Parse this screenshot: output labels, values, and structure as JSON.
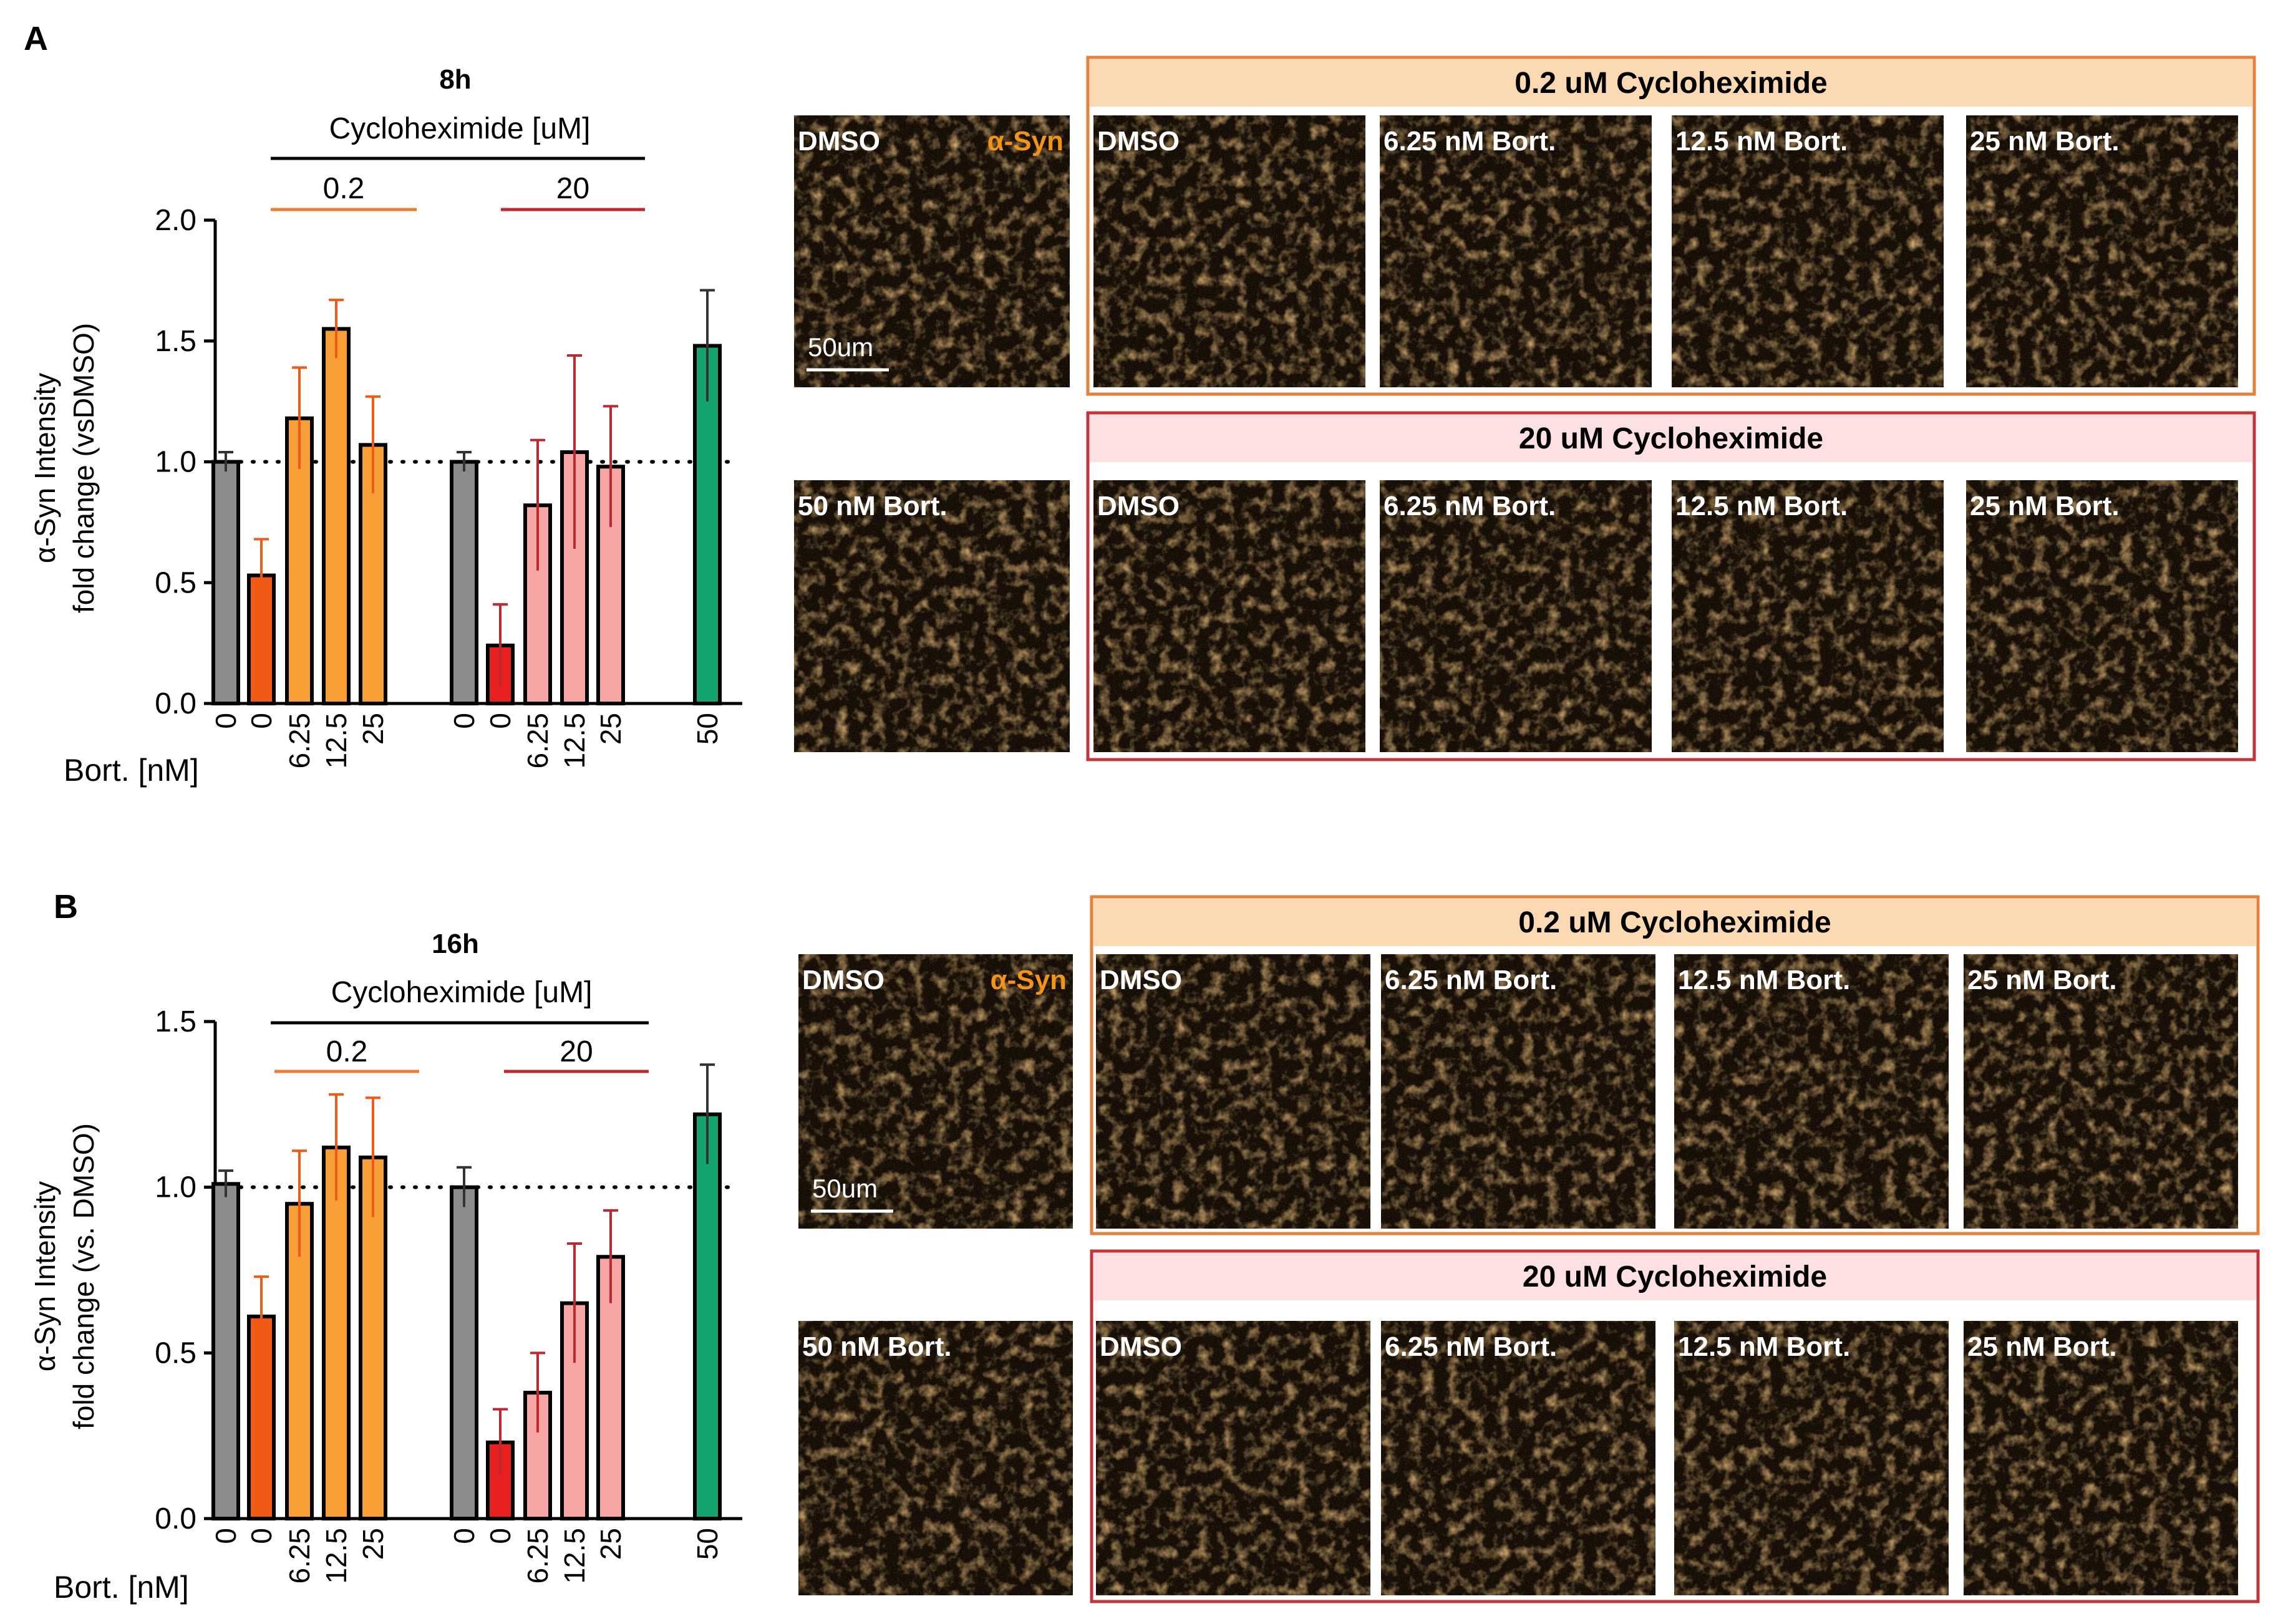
{
  "colors": {
    "gray": "#8c8c8c",
    "orange_dark": "#f05a14",
    "orange_light": "#f8a037",
    "red": "#e8201e",
    "pink": "#f8a5a5",
    "green": "#14a56e",
    "bar_edge": "#000000",
    "orange_line": "#ef7d32",
    "red_line": "#c0282f",
    "orange_panel_fill": "#fbd9b3",
    "orange_panel_border": "#e2823c",
    "red_panel_fill": "#fde0e2",
    "red_panel_border": "#c0353c",
    "micro_bg": "#150d05",
    "micro_text": "#ffffff",
    "syn_label": "#f29418"
  },
  "panels": [
    {
      "letter": "A",
      "chart_data": {
        "type": "bar",
        "title": "8h",
        "ylabel_line1": "α-Syn Intensity",
        "ylabel_line2": "fold change (vsDMSO)",
        "xlabel": "Bort. [nM]",
        "ylim": [
          0,
          2.0
        ],
        "yticks": [
          "0.0",
          "0.5",
          "1.0",
          "1.5",
          "2.0"
        ],
        "reference_line": 1.0,
        "group_header": "Cycloheximide [uM]",
        "subgroups": [
          "0.2",
          "20"
        ],
        "categories": [
          "0",
          "0",
          "6.25",
          "12.5",
          "25",
          "0",
          "0",
          "6.25",
          "12.5",
          "25",
          "50"
        ],
        "values": [
          1.0,
          0.53,
          1.18,
          1.55,
          1.07,
          1.0,
          0.24,
          0.82,
          1.04,
          0.98,
          1.48
        ],
        "errors": [
          0.04,
          0.15,
          0.21,
          0.12,
          0.2,
          0.04,
          0.17,
          0.27,
          0.4,
          0.25,
          0.23
        ],
        "bar_colors": [
          "gray",
          "orange_dark",
          "orange_light",
          "orange_light",
          "orange_light",
          "gray",
          "red",
          "pink",
          "pink",
          "pink",
          "green"
        ],
        "grid": false
      },
      "micrographs": {
        "header_02": "0.2 uM Cycloheximide",
        "header_20": "20 uM Cycloheximide",
        "ctrl_dmso": "DMSO",
        "ctrl_syn": "α-Syn",
        "ctrl_scale": "50um",
        "ctrl_bort": "50 nM Bort.",
        "row_labels": [
          "DMSO",
          "6.25 nM Bort.",
          "12.5 nM Bort.",
          "25 nM Bort."
        ]
      }
    },
    {
      "letter": "B",
      "chart_data": {
        "type": "bar",
        "title": "16h",
        "ylabel_line1": "α-Syn Intensity",
        "ylabel_line2": "fold change (vs. DMSO)",
        "xlabel": "Bort. [nM]",
        "ylim": [
          0,
          1.5
        ],
        "yticks": [
          "0.0",
          "0.5",
          "1.0",
          "1.5"
        ],
        "reference_line": 1.0,
        "group_header": "Cycloheximide [uM]",
        "subgroups": [
          "0.2",
          "20"
        ],
        "categories": [
          "0",
          "0",
          "6.25",
          "12.5",
          "25",
          "0",
          "0",
          "6.25",
          "12.5",
          "25",
          "50"
        ],
        "values": [
          1.01,
          0.61,
          0.95,
          1.12,
          1.09,
          1.0,
          0.23,
          0.38,
          0.65,
          0.79,
          1.22
        ],
        "errors": [
          0.04,
          0.12,
          0.16,
          0.16,
          0.18,
          0.06,
          0.1,
          0.12,
          0.18,
          0.14,
          0.15
        ],
        "bar_colors": [
          "gray",
          "orange_dark",
          "orange_light",
          "orange_light",
          "orange_light",
          "gray",
          "red",
          "pink",
          "pink",
          "pink",
          "green"
        ],
        "grid": false
      },
      "micrographs": {
        "header_02": "0.2 uM Cycloheximide",
        "header_20": "20 uM Cycloheximide",
        "ctrl_dmso": "DMSO",
        "ctrl_syn": "α-Syn",
        "ctrl_scale": "50um",
        "ctrl_bort": "50 nM Bort.",
        "row_labels": [
          "DMSO",
          "6.25 nM Bort.",
          "12.5 nM Bort.",
          "25 nM Bort."
        ]
      }
    }
  ]
}
